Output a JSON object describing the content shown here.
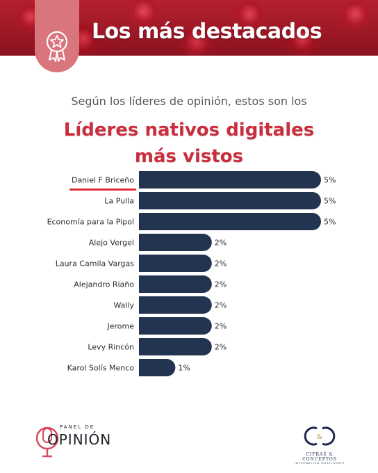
{
  "header": {
    "title": "Los más destacados",
    "badge_icon": "star-medal-icon"
  },
  "subtitle": "Según los líderes de opinión, estos son los",
  "title": "Líderes nativos digitales más vistos",
  "chart_data": {
    "type": "bar",
    "orientation": "horizontal",
    "categories": [
      "Daniel F Briceño",
      "La Pulla",
      "Economía para la Pipol",
      "Alejo Vergel",
      "Laura Camila Vargas",
      "Alejandro Riaño",
      "Wally",
      "Jerome",
      "Levy Rincón",
      "Karol Solís Menco"
    ],
    "values": [
      5,
      5,
      5,
      2,
      2,
      2,
      2,
      2,
      2,
      1
    ],
    "value_labels": [
      "5%",
      "5%",
      "5%",
      "2%",
      "2%",
      "2%",
      "2%",
      "2%",
      "2%",
      "1%"
    ],
    "unit": "%",
    "bar_color": "#233450",
    "highlight_color": "#e02a35",
    "highlighted_category": "Daniel F Briceño",
    "xlim": [
      0,
      5
    ],
    "grid": false
  },
  "footer": {
    "left_logo": {
      "small": "PANEL DE",
      "big": "OPINIÓN",
      "icon": "microphone-icon"
    },
    "right_logo": {
      "monogram": "C&C",
      "name": "CIFRAS & CONCEPTOS",
      "tagline": "INFORMACIÓN INTELIGENTE"
    }
  },
  "colors": {
    "accent_red": "#cc2d3d",
    "badge_pink": "#d9757c",
    "navy": "#233450"
  }
}
